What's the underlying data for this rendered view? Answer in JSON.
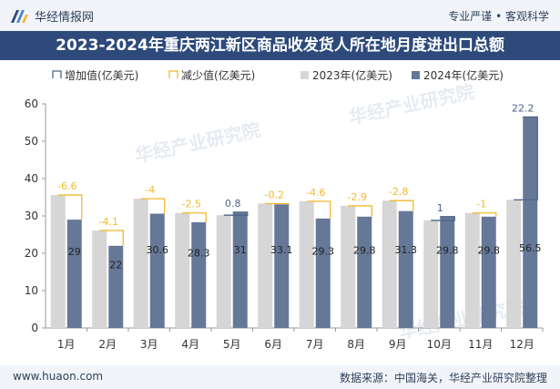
{
  "header": {
    "brand": "华经情报网",
    "tagline": "专业严谨 • 客观科学",
    "title": "2023-2024年重庆两江新区商品收发货人所在地月度进出口总额"
  },
  "footer": {
    "site": "www.huaon.com",
    "source": "数据来源：中国海关，华经产业研究院整理"
  },
  "watermark": "华经产业研究院",
  "colors": {
    "bar2023": "#d6d6d6",
    "bar2024": "#667898",
    "increase": "#4c6587",
    "decrease": "#f2b928",
    "header_band": "#2d4a7a"
  },
  "chart_data": {
    "type": "bar",
    "categories": [
      "1月",
      "2月",
      "3月",
      "4月",
      "5月",
      "6月",
      "7月",
      "8月",
      "9月",
      "10月",
      "11月",
      "12月"
    ],
    "series": [
      {
        "name": "2023年(亿美元)",
        "values": [
          35.6,
          26.1,
          34.6,
          30.8,
          30.2,
          33.3,
          33.9,
          32.7,
          34.1,
          28.8,
          30.8,
          34.3
        ]
      },
      {
        "name": "2024年(亿美元)",
        "values": [
          29,
          22,
          30.6,
          28.3,
          31,
          33.1,
          29.3,
          29.8,
          31.3,
          29.8,
          29.8,
          56.5
        ]
      }
    ],
    "change": [
      -6.6,
      -4.1,
      -4,
      -2.5,
      0.8,
      -0.2,
      -4.6,
      -2.9,
      -2.8,
      1,
      -1,
      22.2
    ],
    "legend": [
      "增加值(亿美元)",
      "减少值(亿美元)",
      "2023年(亿美元)",
      "2024年(亿美元)"
    ],
    "ylim": [
      0,
      60
    ],
    "yticks": [
      0,
      10,
      20,
      30,
      40,
      50,
      60
    ],
    "legend_position": "top"
  }
}
